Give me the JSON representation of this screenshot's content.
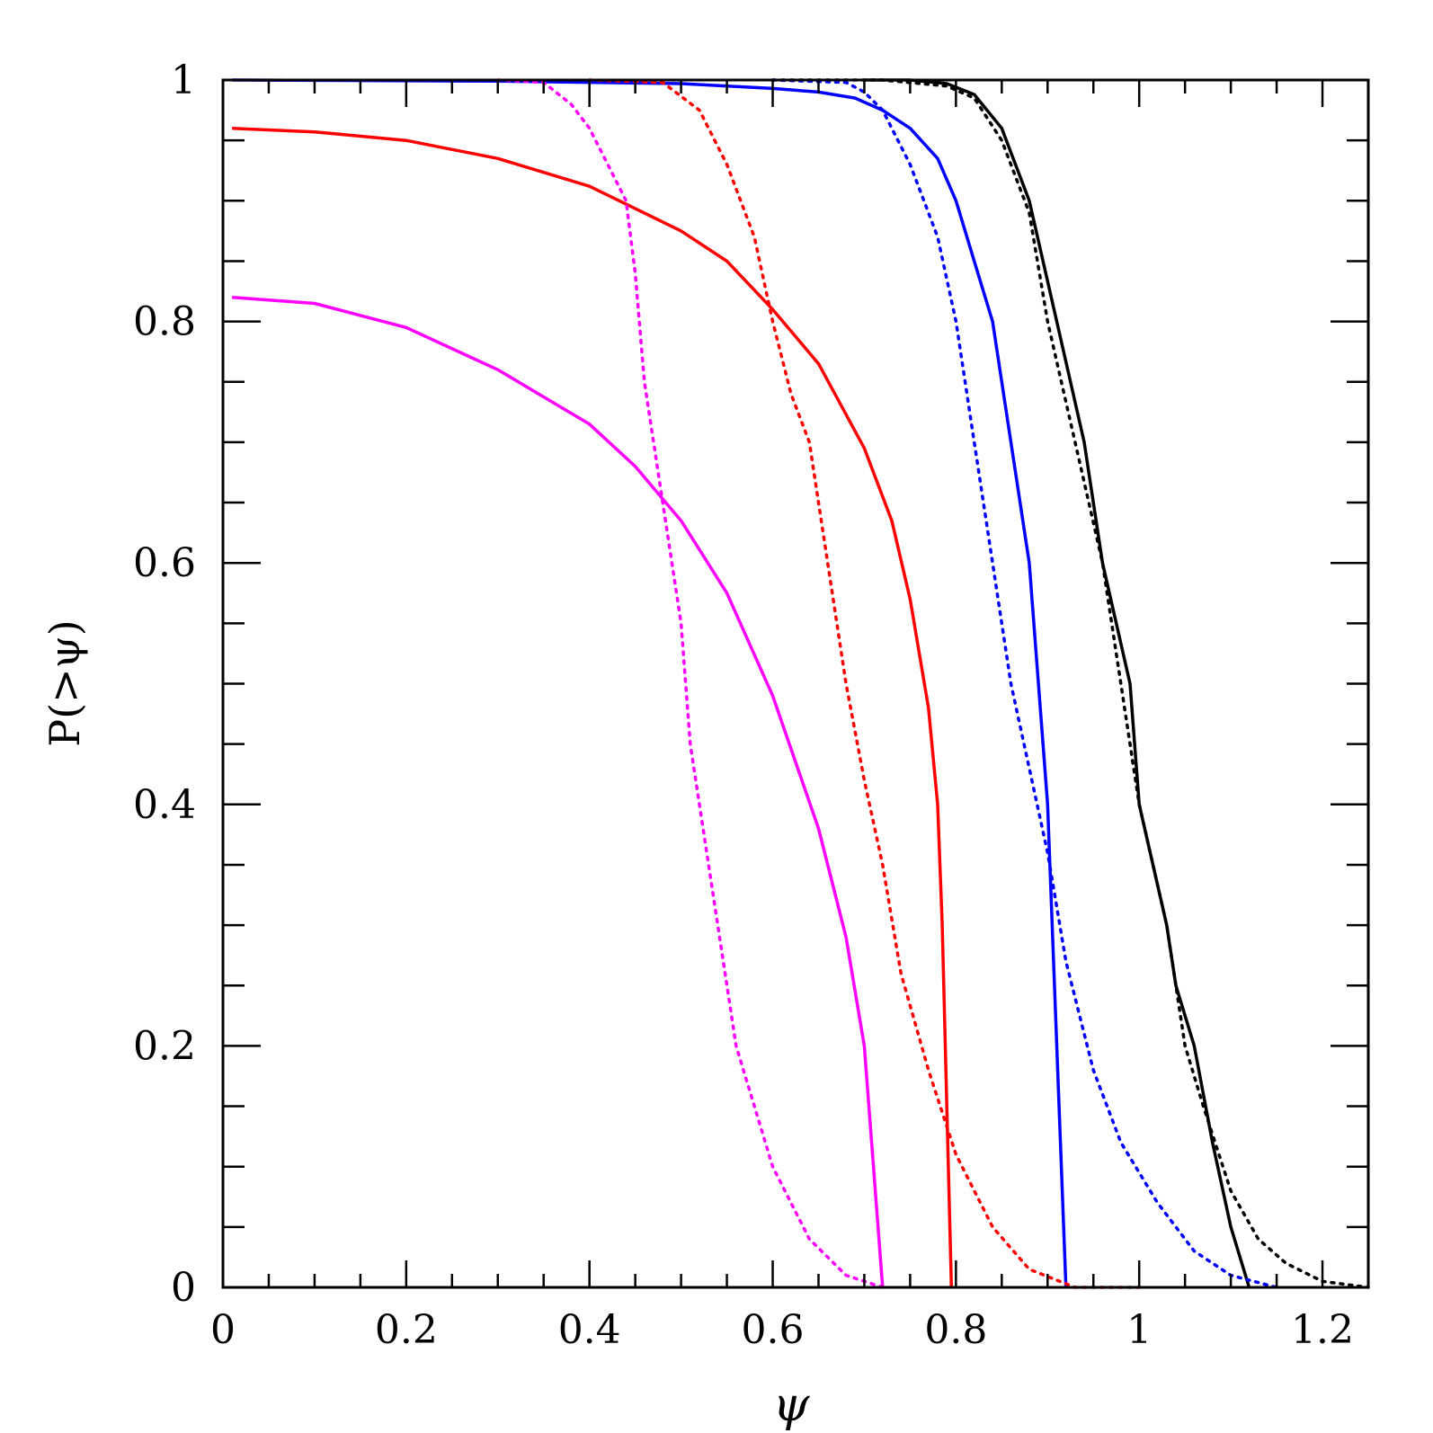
{
  "chart_data": {
    "type": "line",
    "title": "",
    "xlabel": "ψ",
    "ylabel": "P(>ψ)",
    "xlim": [
      0,
      1.25
    ],
    "ylim": [
      0,
      1
    ],
    "grid": false,
    "legend": "none",
    "x_ticks": [
      {
        "value": 0,
        "label": "0"
      },
      {
        "value": 0.2,
        "label": "0.2"
      },
      {
        "value": 0.4,
        "label": "0.4"
      },
      {
        "value": 0.6,
        "label": "0.6"
      },
      {
        "value": 0.8,
        "label": "0.8"
      },
      {
        "value": 1,
        "label": "1"
      },
      {
        "value": 1.2,
        "label": "1.2"
      }
    ],
    "y_ticks": [
      {
        "value": 0,
        "label": "0"
      },
      {
        "value": 0.2,
        "label": "0.2"
      },
      {
        "value": 0.4,
        "label": "0.4"
      },
      {
        "value": 0.6,
        "label": "0.6"
      },
      {
        "value": 0.8,
        "label": "0.8"
      },
      {
        "value": 1,
        "label": "1"
      }
    ],
    "series": [
      {
        "color": "#000000",
        "style": "solid",
        "points": [
          [
            0.7,
            1.0
          ],
          [
            0.75,
            1.0
          ],
          [
            0.79,
            0.997
          ],
          [
            0.82,
            0.988
          ],
          [
            0.85,
            0.96
          ],
          [
            0.88,
            0.9
          ],
          [
            0.91,
            0.8
          ],
          [
            0.94,
            0.7
          ],
          [
            0.96,
            0.6
          ],
          [
            0.99,
            0.5
          ],
          [
            1.0,
            0.4
          ],
          [
            1.03,
            0.3
          ],
          [
            1.04,
            0.25
          ],
          [
            1.06,
            0.2
          ],
          [
            1.08,
            0.12
          ],
          [
            1.1,
            0.05
          ],
          [
            1.12,
            0.0
          ]
        ]
      },
      {
        "color": "#000000",
        "style": "dotted",
        "points": [
          [
            0.6,
            1.0
          ],
          [
            0.72,
            1.0
          ],
          [
            0.79,
            0.995
          ],
          [
            0.82,
            0.985
          ],
          [
            0.85,
            0.95
          ],
          [
            0.88,
            0.89
          ],
          [
            0.9,
            0.8
          ],
          [
            0.93,
            0.7
          ],
          [
            0.96,
            0.6
          ],
          [
            0.98,
            0.5
          ],
          [
            1.0,
            0.4
          ],
          [
            1.03,
            0.3
          ],
          [
            1.05,
            0.2
          ],
          [
            1.07,
            0.15
          ],
          [
            1.1,
            0.08
          ],
          [
            1.13,
            0.04
          ],
          [
            1.16,
            0.02
          ],
          [
            1.2,
            0.005
          ],
          [
            1.25,
            0.0
          ]
        ]
      },
      {
        "color": "#0000ff",
        "style": "solid",
        "points": [
          [
            0.01,
            1.0
          ],
          [
            0.3,
            0.999
          ],
          [
            0.5,
            0.997
          ],
          [
            0.6,
            0.993
          ],
          [
            0.65,
            0.99
          ],
          [
            0.69,
            0.985
          ],
          [
            0.72,
            0.975
          ],
          [
            0.75,
            0.96
          ],
          [
            0.78,
            0.935
          ],
          [
            0.8,
            0.9
          ],
          [
            0.82,
            0.85
          ],
          [
            0.84,
            0.8
          ],
          [
            0.86,
            0.7
          ],
          [
            0.88,
            0.6
          ],
          [
            0.89,
            0.5
          ],
          [
            0.9,
            0.4
          ],
          [
            0.91,
            0.2
          ],
          [
            0.92,
            0.0
          ]
        ]
      },
      {
        "color": "#0000ff",
        "style": "dotted",
        "points": [
          [
            0.6,
            1.0
          ],
          [
            0.68,
            0.998
          ],
          [
            0.7,
            0.99
          ],
          [
            0.72,
            0.975
          ],
          [
            0.75,
            0.93
          ],
          [
            0.78,
            0.87
          ],
          [
            0.8,
            0.8
          ],
          [
            0.82,
            0.7
          ],
          [
            0.84,
            0.6
          ],
          [
            0.86,
            0.5
          ],
          [
            0.88,
            0.43
          ],
          [
            0.9,
            0.36
          ],
          [
            0.92,
            0.27
          ],
          [
            0.95,
            0.18
          ],
          [
            0.98,
            0.12
          ],
          [
            1.02,
            0.07
          ],
          [
            1.06,
            0.03
          ],
          [
            1.1,
            0.01
          ],
          [
            1.15,
            0.0
          ]
        ]
      },
      {
        "color": "#ff0000",
        "style": "solid",
        "points": [
          [
            0.01,
            0.96
          ],
          [
            0.1,
            0.957
          ],
          [
            0.2,
            0.95
          ],
          [
            0.3,
            0.935
          ],
          [
            0.4,
            0.912
          ],
          [
            0.5,
            0.875
          ],
          [
            0.55,
            0.85
          ],
          [
            0.6,
            0.81
          ],
          [
            0.65,
            0.765
          ],
          [
            0.7,
            0.695
          ],
          [
            0.73,
            0.635
          ],
          [
            0.75,
            0.57
          ],
          [
            0.77,
            0.48
          ],
          [
            0.78,
            0.4
          ],
          [
            0.785,
            0.3
          ],
          [
            0.79,
            0.15
          ],
          [
            0.795,
            0.0
          ]
        ]
      },
      {
        "color": "#ff0000",
        "style": "dotted",
        "points": [
          [
            0.4,
            1.0
          ],
          [
            0.48,
            0.998
          ],
          [
            0.52,
            0.975
          ],
          [
            0.55,
            0.93
          ],
          [
            0.58,
            0.87
          ],
          [
            0.6,
            0.8
          ],
          [
            0.62,
            0.74
          ],
          [
            0.64,
            0.7
          ],
          [
            0.66,
            0.6
          ],
          [
            0.68,
            0.5
          ],
          [
            0.7,
            0.42
          ],
          [
            0.72,
            0.35
          ],
          [
            0.74,
            0.26
          ],
          [
            0.77,
            0.18
          ],
          [
            0.8,
            0.11
          ],
          [
            0.84,
            0.05
          ],
          [
            0.88,
            0.015
          ],
          [
            0.93,
            0.0
          ],
          [
            1.0,
            0.0
          ]
        ]
      },
      {
        "color": "#ff00ff",
        "style": "solid",
        "points": [
          [
            0.01,
            0.82
          ],
          [
            0.1,
            0.815
          ],
          [
            0.2,
            0.795
          ],
          [
            0.3,
            0.76
          ],
          [
            0.4,
            0.715
          ],
          [
            0.45,
            0.68
          ],
          [
            0.5,
            0.635
          ],
          [
            0.55,
            0.575
          ],
          [
            0.6,
            0.49
          ],
          [
            0.65,
            0.38
          ],
          [
            0.68,
            0.29
          ],
          [
            0.7,
            0.2
          ],
          [
            0.71,
            0.1
          ],
          [
            0.715,
            0.05
          ],
          [
            0.72,
            0.0
          ]
        ]
      },
      {
        "color": "#ff00ff",
        "style": "dotted",
        "points": [
          [
            0.3,
            1.0
          ],
          [
            0.35,
            0.998
          ],
          [
            0.38,
            0.98
          ],
          [
            0.4,
            0.96
          ],
          [
            0.42,
            0.93
          ],
          [
            0.44,
            0.9
          ],
          [
            0.45,
            0.84
          ],
          [
            0.46,
            0.75
          ],
          [
            0.47,
            0.7
          ],
          [
            0.48,
            0.65
          ],
          [
            0.49,
            0.6
          ],
          [
            0.5,
            0.55
          ],
          [
            0.51,
            0.45
          ],
          [
            0.52,
            0.4
          ],
          [
            0.54,
            0.3
          ],
          [
            0.56,
            0.2
          ],
          [
            0.6,
            0.1
          ],
          [
            0.64,
            0.04
          ],
          [
            0.68,
            0.01
          ],
          [
            0.72,
            0.0
          ]
        ]
      }
    ]
  }
}
